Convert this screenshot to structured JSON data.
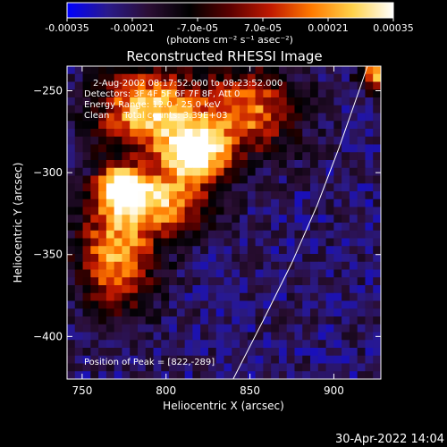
{
  "chart_data": {
    "type": "heatmap",
    "title": "Reconstructed RHESSI Image",
    "xlabel": "Heliocentric X (arcsec)",
    "ylabel": "Heliocentric Y (arcsec)",
    "xlim": [
      741,
      928
    ],
    "ylim": [
      -426,
      -235
    ],
    "x_ticks": [
      750,
      800,
      850,
      900
    ],
    "y_ticks": [
      -250,
      -300,
      -350,
      -400
    ],
    "colorbar": {
      "ticks": [
        "-0.00035",
        "-0.00021",
        "-7.0e-05",
        "7.0e-05",
        "0.00021",
        "0.00035"
      ],
      "range": [
        -0.00035,
        0.00035
      ],
      "label": "(photons cm⁻² s⁻¹ asec⁻²)",
      "colormap": [
        "#0000ff",
        "#2a1a8a",
        "#2b0e34",
        "#000000",
        "#5c0000",
        "#c11a00",
        "#ff7a00",
        "#ffd24a",
        "#ffffff"
      ]
    },
    "annotations": [
      "2-Aug-2002 08:17:52.000 to 08:23:52.000",
      "Detectors: 3F 4F 5F 6F 7F 8F, Att 0",
      "Energy Range: 12.0 - 25.0 keV",
      "Clean     Total counts: 3.39E+03"
    ],
    "peak_label": "Position of Peak = [822,-289]",
    "peak": [
      822,
      -289
    ],
    "limb": [
      [
        840,
        -426
      ],
      [
        858,
        -390
      ],
      [
        875,
        -355
      ],
      [
        890,
        -320
      ],
      [
        903,
        -285
      ],
      [
        915,
        -250
      ],
      [
        920,
        -235
      ]
    ],
    "bright_regions": [
      {
        "x": 818,
        "y": -288,
        "intensity": 0.00035,
        "sx": 14,
        "sy": 12
      },
      {
        "x": 773,
        "y": -310,
        "intensity": 0.00033,
        "sx": 10,
        "sy": 9
      },
      {
        "x": 790,
        "y": -262,
        "intensity": 0.00028,
        "sx": 22,
        "sy": 18
      },
      {
        "x": 770,
        "y": -350,
        "intensity": 0.00022,
        "sx": 16,
        "sy": 25
      },
      {
        "x": 800,
        "y": -318,
        "intensity": 0.0002,
        "sx": 18,
        "sy": 14
      },
      {
        "x": 850,
        "y": -262,
        "intensity": 0.00016,
        "sx": 20,
        "sy": 18
      },
      {
        "x": 925,
        "y": -240,
        "intensity": 0.00022,
        "sx": 7,
        "sy": 7
      }
    ]
  },
  "footer": {
    "timestamp": "30-Apr-2022 14:04"
  }
}
